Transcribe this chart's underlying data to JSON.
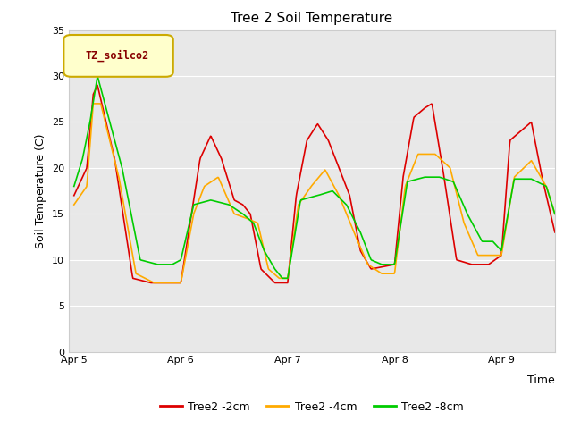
{
  "title": "Tree 2 Soil Temperature",
  "ylabel": "Soil Temperature (C)",
  "xlabel": "Time",
  "ylim": [
    0,
    35
  ],
  "yticks": [
    0,
    5,
    10,
    15,
    20,
    25,
    30,
    35
  ],
  "xtick_labels": [
    "Apr 5",
    "Apr 6",
    "Apr 7",
    "Apr 8",
    "Apr 9"
  ],
  "fig_bg": "#ffffff",
  "plot_bg": "#e8e8e8",
  "grid_color": "#ffffff",
  "legend_box_label": "TZ_soilco2",
  "legend_box_facecolor": "#ffffcc",
  "legend_box_edgecolor": "#ccaa00",
  "legend_text_color": "#880000",
  "series": [
    {
      "label": "Tree2 -2cm",
      "color": "#dd0000"
    },
    {
      "label": "Tree2 -4cm",
      "color": "#ffaa00"
    },
    {
      "label": "Tree2 -8cm",
      "color": "#00cc00"
    }
  ],
  "red_t": [
    0,
    0.12,
    0.18,
    0.22,
    0.38,
    0.55,
    0.72,
    0.88,
    1.0,
    1.1,
    1.18,
    1.28,
    1.38,
    1.5,
    1.58,
    1.65,
    1.75,
    1.88,
    2.0,
    2.08,
    2.18,
    2.28,
    2.38,
    2.48,
    2.58,
    2.68,
    2.78,
    3.0,
    3.08,
    3.18,
    3.28,
    3.35,
    3.45,
    3.58,
    3.72,
    3.88,
    4.0,
    4.08,
    4.18,
    4.28,
    4.38,
    4.5
  ],
  "red_v": [
    17,
    20,
    28,
    29,
    21,
    8,
    7.5,
    7.5,
    7.5,
    15,
    21,
    23.5,
    21,
    16.5,
    16,
    15,
    9,
    7.5,
    7.5,
    17,
    23,
    24.8,
    23,
    20,
    17,
    11,
    9,
    9.5,
    19,
    25.5,
    26.5,
    27,
    20,
    10,
    9.5,
    9.5,
    10.5,
    23,
    24,
    25,
    19,
    13
  ],
  "ora_t": [
    0,
    0.12,
    0.18,
    0.25,
    0.42,
    0.58,
    0.75,
    0.9,
    1.0,
    1.12,
    1.22,
    1.35,
    1.5,
    1.62,
    1.72,
    1.82,
    1.92,
    2.0,
    2.1,
    2.22,
    2.35,
    2.48,
    2.62,
    2.75,
    2.88,
    3.0,
    3.1,
    3.22,
    3.38,
    3.52,
    3.65,
    3.78,
    3.9,
    4.0,
    4.12,
    4.28,
    4.42,
    4.5
  ],
  "ora_v": [
    16,
    18,
    27,
    27,
    19,
    8.5,
    7.5,
    7.5,
    7.5,
    15,
    18,
    19,
    15,
    14.5,
    14,
    9,
    8,
    8,
    16,
    18,
    19.8,
    17,
    13,
    9.5,
    8.5,
    8.5,
    18,
    21.5,
    21.5,
    20,
    14,
    10.5,
    10.5,
    10.5,
    19,
    20.8,
    18,
    15
  ],
  "grn_t": [
    0,
    0.08,
    0.15,
    0.22,
    0.45,
    0.62,
    0.78,
    0.92,
    1.0,
    1.12,
    1.28,
    1.45,
    1.58,
    1.68,
    1.78,
    1.88,
    1.95,
    2.0,
    2.12,
    2.28,
    2.42,
    2.55,
    2.68,
    2.78,
    2.88,
    3.0,
    3.12,
    3.28,
    3.42,
    3.55,
    3.68,
    3.82,
    3.92,
    4.0,
    4.12,
    4.28,
    4.42,
    4.5
  ],
  "grn_v": [
    18,
    21,
    25,
    30,
    20,
    10,
    9.5,
    9.5,
    10,
    16,
    16.5,
    16,
    15,
    14,
    11,
    9,
    8,
    8,
    16.5,
    17,
    17.5,
    16,
    13,
    10,
    9.5,
    9.5,
    18.5,
    19,
    19,
    18.5,
    15,
    12,
    12,
    11,
    18.8,
    18.8,
    18,
    15
  ]
}
